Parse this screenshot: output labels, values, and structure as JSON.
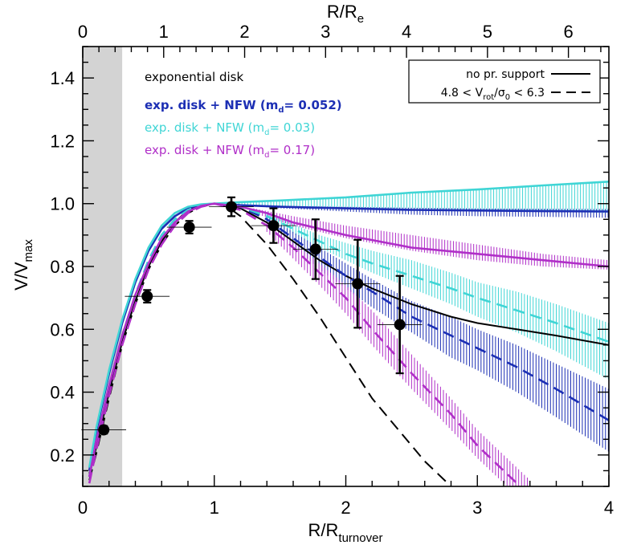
{
  "chart_data": {
    "type": "line",
    "xlabel": "R/R",
    "xlabel_sub": "turnover",
    "ylabel": "V/V",
    "ylabel_sub": "max",
    "top_xlabel": "R/R",
    "top_xlabel_sub": "e",
    "xlim": [
      0,
      4
    ],
    "ylim": [
      0.1,
      1.5
    ],
    "top_xlim": [
      0,
      6.5
    ],
    "xticks": [
      "0",
      "1",
      "2",
      "3",
      "4"
    ],
    "yticks": [
      "0.2",
      "0.4",
      "0.6",
      "0.8",
      "1.0",
      "1.2",
      "1.4"
    ],
    "top_xticks": [
      "0",
      "1",
      "2",
      "3",
      "4",
      "5",
      "6"
    ],
    "shaded_region": {
      "x": [
        0,
        0.3
      ],
      "color": "#d3d3d3"
    },
    "annotations": [
      {
        "text": "exponential disk",
        "color": "#000000",
        "bold": false
      },
      {
        "text": "exp. disk + NFW (m",
        "sub": "d",
        "tail": "= 0.052)",
        "color": "#1c2fb4",
        "bold": true
      },
      {
        "text": "exp. disk + NFW (m",
        "sub": "d",
        "tail": "= 0.03)",
        "color": "#3fd5d5",
        "bold": false
      },
      {
        "text": "exp. disk + NFW (m",
        "sub": "d",
        "tail": "= 0.17)",
        "color": "#b02fc8",
        "bold": false
      }
    ],
    "legend": {
      "position": "top-right",
      "entries": [
        {
          "label": "no pr. support",
          "style": "solid"
        },
        {
          "label_parts": [
            "4.8 < V",
            "rot",
            "/σ",
            "0",
            " < 6.3"
          ],
          "style": "dashed"
        }
      ]
    },
    "series": [
      {
        "color": "#000000",
        "style": "solid",
        "x": [
          0.05,
          0.1,
          0.2,
          0.3,
          0.4,
          0.5,
          0.6,
          0.7,
          0.8,
          0.9,
          1.0,
          1.1,
          1.2,
          1.4,
          1.6,
          1.8,
          2.0,
          2.2,
          2.5,
          2.8,
          3.0,
          3.3,
          3.6,
          4.0
        ],
        "y": [
          0.14,
          0.22,
          0.4,
          0.56,
          0.69,
          0.8,
          0.88,
          0.94,
          0.98,
          0.995,
          1.0,
          0.998,
          0.985,
          0.94,
          0.88,
          0.82,
          0.77,
          0.73,
          0.68,
          0.64,
          0.62,
          0.6,
          0.58,
          0.55
        ]
      },
      {
        "color": "#000000",
        "style": "dashed",
        "x": [
          0.05,
          0.1,
          0.2,
          0.3,
          0.4,
          0.5,
          0.6,
          0.7,
          0.8,
          0.9,
          1.0,
          1.1,
          1.2,
          1.4,
          1.6,
          1.8,
          2.0,
          2.2,
          2.4,
          2.6,
          2.8
        ],
        "y": [
          0.12,
          0.2,
          0.38,
          0.55,
          0.68,
          0.79,
          0.87,
          0.93,
          0.97,
          0.99,
          1.0,
          0.99,
          0.96,
          0.87,
          0.76,
          0.64,
          0.51,
          0.38,
          0.28,
          0.18,
          0.1
        ]
      },
      {
        "color": "#1c2fb4",
        "style": "solid",
        "x": [
          0.05,
          0.1,
          0.2,
          0.3,
          0.4,
          0.5,
          0.6,
          0.7,
          0.8,
          0.9,
          1.0,
          1.2,
          1.5,
          2.0,
          2.5,
          3.0,
          3.5,
          4.0
        ],
        "y": [
          0.15,
          0.27,
          0.46,
          0.62,
          0.75,
          0.85,
          0.92,
          0.96,
          0.985,
          0.997,
          1.0,
          0.995,
          0.99,
          0.985,
          0.98,
          0.978,
          0.976,
          0.975
        ]
      },
      {
        "color": "#1c2fb4",
        "style": "dashed",
        "x": [
          0.05,
          0.1,
          0.2,
          0.3,
          0.4,
          0.5,
          0.6,
          0.7,
          0.8,
          0.9,
          1.0,
          1.2,
          1.4,
          1.6,
          1.8,
          2.0,
          2.2,
          2.5,
          2.8,
          3.0,
          3.3,
          3.6,
          4.0
        ],
        "y": [
          0.13,
          0.24,
          0.42,
          0.58,
          0.71,
          0.82,
          0.9,
          0.95,
          0.98,
          0.995,
          1.0,
          0.99,
          0.95,
          0.89,
          0.83,
          0.77,
          0.72,
          0.64,
          0.58,
          0.54,
          0.48,
          0.41,
          0.31
        ]
      },
      {
        "color": "#3fd5d5",
        "style": "solid",
        "x": [
          0.05,
          0.1,
          0.2,
          0.3,
          0.4,
          0.5,
          0.6,
          0.7,
          0.8,
          0.9,
          1.0,
          1.2,
          1.5,
          2.0,
          2.5,
          3.0,
          3.5,
          4.0
        ],
        "y": [
          0.16,
          0.28,
          0.47,
          0.63,
          0.76,
          0.86,
          0.93,
          0.97,
          0.99,
          0.998,
          1.0,
          1.005,
          1.01,
          1.02,
          1.035,
          1.045,
          1.058,
          1.07
        ]
      },
      {
        "color": "#3fd5d5",
        "style": "dashed",
        "x": [
          0.05,
          0.1,
          0.2,
          0.3,
          0.4,
          0.5,
          0.6,
          0.7,
          0.8,
          0.9,
          1.0,
          1.2,
          1.4,
          1.6,
          1.8,
          2.0,
          2.2,
          2.5,
          2.8,
          3.0,
          3.3,
          3.6,
          4.0
        ],
        "y": [
          0.13,
          0.24,
          0.42,
          0.58,
          0.71,
          0.82,
          0.9,
          0.95,
          0.98,
          0.995,
          1.0,
          0.99,
          0.96,
          0.92,
          0.88,
          0.84,
          0.81,
          0.77,
          0.73,
          0.7,
          0.66,
          0.62,
          0.56
        ]
      },
      {
        "color": "#b02fc8",
        "style": "solid",
        "x": [
          0.05,
          0.1,
          0.2,
          0.3,
          0.4,
          0.5,
          0.6,
          0.7,
          0.8,
          0.9,
          1.0,
          1.2,
          1.4,
          1.6,
          1.8,
          2.0,
          2.5,
          3.0,
          3.5,
          4.0
        ],
        "y": [
          0.13,
          0.24,
          0.42,
          0.58,
          0.71,
          0.81,
          0.89,
          0.94,
          0.975,
          0.993,
          1.0,
          0.99,
          0.97,
          0.94,
          0.92,
          0.9,
          0.86,
          0.84,
          0.82,
          0.8
        ]
      },
      {
        "color": "#b02fc8",
        "style": "dashed",
        "x": [
          0.05,
          0.1,
          0.2,
          0.3,
          0.4,
          0.5,
          0.6,
          0.7,
          0.8,
          0.9,
          1.0,
          1.2,
          1.4,
          1.6,
          1.8,
          2.0,
          2.2,
          2.5,
          2.8,
          3.0,
          3.2,
          3.4
        ],
        "y": [
          0.11,
          0.21,
          0.39,
          0.55,
          0.68,
          0.79,
          0.87,
          0.93,
          0.97,
          0.99,
          1.0,
          0.98,
          0.93,
          0.86,
          0.78,
          0.7,
          0.6,
          0.46,
          0.33,
          0.23,
          0.15,
          0.07
        ]
      }
    ],
    "error_bands": [
      {
        "color": "#3fd5d5",
        "x": [
          1.1,
          1.5,
          2.0,
          2.5,
          3.0,
          3.5,
          4.0
        ],
        "lo": [
          1.0,
          0.99,
          0.985,
          0.985,
          0.98,
          0.975,
          0.97
        ],
        "hi": [
          1.0,
          1.01,
          1.02,
          1.035,
          1.045,
          1.058,
          1.07
        ]
      },
      {
        "color": "#1c2fb4",
        "x": [
          1.2,
          1.5,
          2.0,
          2.5,
          3.0,
          3.5,
          4.0
        ],
        "lo": [
          0.995,
          0.985,
          0.975,
          0.965,
          0.96,
          0.958,
          0.955
        ],
        "hi": [
          0.997,
          0.993,
          0.99,
          0.987,
          0.985,
          0.984,
          0.983
        ]
      },
      {
        "color": "#b02fc8",
        "x": [
          1.3,
          1.6,
          2.0,
          2.5,
          3.0,
          3.5,
          4.0
        ],
        "lo": [
          0.97,
          0.93,
          0.89,
          0.85,
          0.82,
          0.8,
          0.79
        ],
        "hi": [
          0.985,
          0.96,
          0.93,
          0.9,
          0.87,
          0.84,
          0.82
        ]
      },
      {
        "color": "#3fd5d5",
        "x": [
          1.4,
          1.8,
          2.2,
          2.5,
          2.8,
          3.0,
          3.3,
          3.6,
          4.0
        ],
        "lo": [
          0.95,
          0.86,
          0.78,
          0.73,
          0.68,
          0.64,
          0.59,
          0.53,
          0.44
        ],
        "hi": [
          0.97,
          0.9,
          0.85,
          0.82,
          0.78,
          0.75,
          0.72,
          0.68,
          0.62
        ]
      },
      {
        "color": "#1c2fb4",
        "x": [
          1.4,
          1.8,
          2.2,
          2.5,
          2.8,
          3.0,
          3.3,
          3.6,
          4.0
        ],
        "lo": [
          0.94,
          0.79,
          0.67,
          0.59,
          0.51,
          0.47,
          0.4,
          0.32,
          0.21
        ],
        "hi": [
          0.96,
          0.86,
          0.76,
          0.69,
          0.64,
          0.6,
          0.55,
          0.49,
          0.41
        ]
      },
      {
        "color": "#b02fc8",
        "x": [
          1.4,
          1.8,
          2.0,
          2.2,
          2.5,
          2.8,
          3.0,
          3.2,
          3.4
        ],
        "lo": [
          0.91,
          0.74,
          0.65,
          0.55,
          0.41,
          0.28,
          0.19,
          0.11,
          0.05
        ],
        "hi": [
          0.94,
          0.81,
          0.74,
          0.66,
          0.52,
          0.38,
          0.28,
          0.2,
          0.12
        ]
      }
    ],
    "data_points": [
      {
        "x": 0.16,
        "y": 0.28,
        "xerr": 0.17,
        "yerr": 0.012
      },
      {
        "x": 0.49,
        "y": 0.705,
        "xerr": 0.17,
        "yerr": 0.02
      },
      {
        "x": 0.81,
        "y": 0.925,
        "xerr": 0.17,
        "yerr": 0.02
      },
      {
        "x": 1.13,
        "y": 0.99,
        "xerr": 0.17,
        "yerr": 0.03
      },
      {
        "x": 1.45,
        "y": 0.93,
        "xerr": 0.17,
        "yerr": 0.055
      },
      {
        "x": 1.77,
        "y": 0.855,
        "xerr": 0.17,
        "yerr": 0.095
      },
      {
        "x": 2.09,
        "y": 0.745,
        "xerr": 0.17,
        "yerr": 0.14
      },
      {
        "x": 2.41,
        "y": 0.615,
        "xerr": 0.17,
        "yerr": 0.155
      }
    ]
  }
}
